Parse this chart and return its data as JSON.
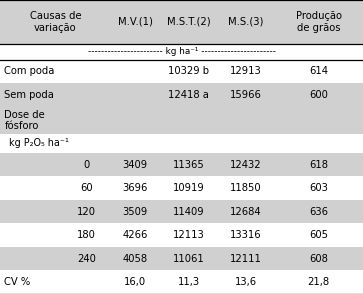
{
  "col_headers": [
    "Causas de\nvariação",
    "M.V.(1)",
    "M.S.T.(2)",
    "M.S.(3)",
    "Produção\nde grãos"
  ],
  "rows": [
    {
      "label": "Com poda",
      "indent": 0,
      "mv": "",
      "mst": "10329 b",
      "ms": "12913",
      "prod": "614",
      "bg": "white"
    },
    {
      "label": "Sem poda",
      "indent": 0,
      "mv": "",
      "mst": "12418 a",
      "ms": "15966",
      "prod": "600",
      "bg": "#d0d0d0"
    },
    {
      "label": "Dose de\nfósforo",
      "indent": 0,
      "mv": "",
      "mst": "",
      "ms": "",
      "prod": "",
      "bg": "#d0d0d0"
    },
    {
      "label": "kg P₂O₅ ha⁻¹",
      "indent": 1,
      "mv": "",
      "mst": "",
      "ms": "",
      "prod": "",
      "bg": "white"
    },
    {
      "label": "0",
      "indent": 2,
      "mv": "3409",
      "mst": "11365",
      "ms": "12432",
      "prod": "618",
      "bg": "#d0d0d0"
    },
    {
      "label": "60",
      "indent": 2,
      "mv": "3696",
      "mst": "10919",
      "ms": "11850",
      "prod": "603",
      "bg": "white"
    },
    {
      "label": "120",
      "indent": 2,
      "mv": "3509",
      "mst": "11409",
      "ms": "12684",
      "prod": "636",
      "bg": "#d0d0d0"
    },
    {
      "label": "180",
      "indent": 2,
      "mv": "4266",
      "mst": "12113",
      "ms": "13316",
      "prod": "605",
      "bg": "white"
    },
    {
      "label": "240",
      "indent": 2,
      "mv": "4058",
      "mst": "11061",
      "ms": "12111",
      "prod": "608",
      "bg": "#d0d0d0"
    },
    {
      "label": "CV %",
      "indent": 0,
      "mv": "16,0",
      "mst": "11,3",
      "ms": "13,6",
      "prod": "21,8",
      "bg": "white"
    }
  ],
  "bg_header": "#d0d0d0",
  "unit_text": "----------------------- kg ha⁻¹ -----------------------",
  "fontsize": 7.2,
  "figwidth": 3.63,
  "figheight": 2.94,
  "col_bounds": [
    0.0,
    0.305,
    0.44,
    0.6,
    0.755,
    1.0
  ]
}
